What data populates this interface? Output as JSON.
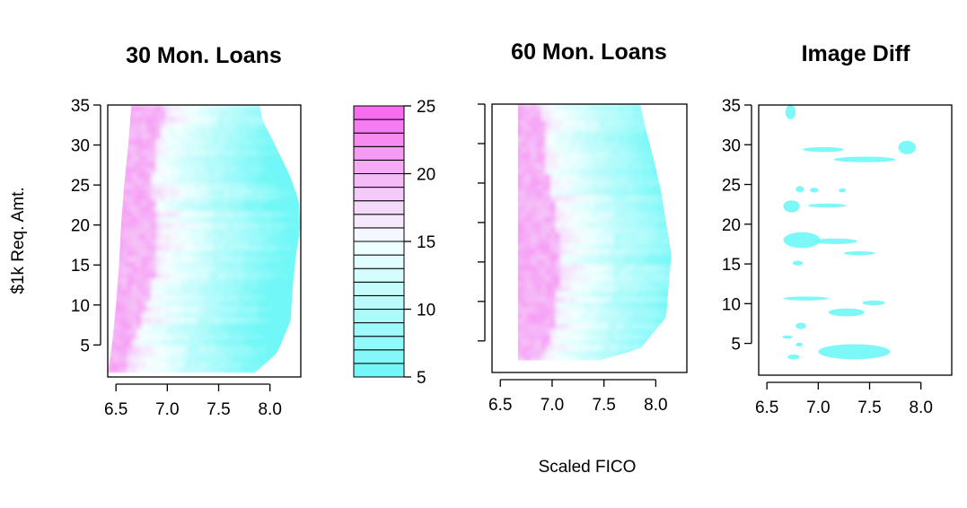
{
  "figure": {
    "shared_xlabel": "Scaled FICO",
    "shared_ylabel": "$1k Req. Amt."
  },
  "colors": {
    "low": "#6ff7f7",
    "mid": "#f5ffff",
    "high": "#f665ee",
    "frame": "#000000"
  },
  "chart_data": [
    {
      "type": "heatmap",
      "title": "30 Mon. Loans",
      "xlim": [
        6.42,
        8.3
      ],
      "ylim": [
        1,
        35
      ],
      "xticks": [
        6.5,
        7.0,
        7.5,
        8.0
      ],
      "xtick_labels": [
        "6.5",
        "7.0",
        "7.5",
        "8.0"
      ],
      "yticks": [
        5,
        10,
        15,
        20,
        25,
        30,
        35
      ],
      "ytick_labels": [
        "5",
        "10",
        "15",
        "20",
        "25",
        "30",
        "35"
      ],
      "value_range": [
        5,
        25
      ],
      "left_edge": [
        [
          1.5,
          6.42
        ],
        [
          4,
          6.45
        ],
        [
          6,
          6.47
        ],
        [
          10,
          6.5
        ],
        [
          15,
          6.53
        ],
        [
          20,
          6.55
        ],
        [
          25,
          6.58
        ],
        [
          30,
          6.62
        ],
        [
          35,
          6.65
        ]
      ],
      "right_edge": [
        [
          1.5,
          7.85
        ],
        [
          4,
          8.07
        ],
        [
          8,
          8.2
        ],
        [
          12,
          8.22
        ],
        [
          16,
          8.25
        ],
        [
          20,
          8.3
        ],
        [
          23,
          8.28
        ],
        [
          26,
          8.2
        ],
        [
          30,
          8.05
        ],
        [
          33,
          7.93
        ],
        [
          35,
          7.9
        ]
      ],
      "boundary_profile": [
        [
          1,
          6.75
        ],
        [
          3,
          6.75
        ],
        [
          5,
          6.8
        ],
        [
          8,
          6.9
        ],
        [
          12,
          7.0
        ],
        [
          16,
          7.05
        ],
        [
          20,
          7.05
        ],
        [
          25,
          7.0
        ],
        [
          30,
          7.05
        ],
        [
          35,
          7.15
        ]
      ]
    },
    {
      "type": "heatmap",
      "title": "60 Mon. Loans",
      "xlim": [
        6.42,
        8.3
      ],
      "ylim": [
        1,
        35
      ],
      "xticks": [
        6.5,
        7.0,
        7.5,
        8.0
      ],
      "xtick_labels": [
        "6.5",
        "7.0",
        "7.5",
        "8.0"
      ],
      "yticks": [
        5,
        10,
        15,
        20,
        25,
        30,
        35
      ],
      "ytick_labels": [],
      "value_range": [
        5,
        25
      ],
      "left_edge": [
        [
          2.5,
          6.67
        ],
        [
          35,
          6.67
        ]
      ],
      "right_edge": [
        [
          2.5,
          7.45
        ],
        [
          4,
          7.85
        ],
        [
          8,
          8.1
        ],
        [
          16,
          8.15
        ],
        [
          20,
          8.1
        ],
        [
          24,
          8.05
        ],
        [
          28,
          7.98
        ],
        [
          32,
          7.9
        ],
        [
          35,
          7.85
        ]
      ],
      "boundary_profile": [
        [
          2.5,
          7.05
        ],
        [
          6,
          7.15
        ],
        [
          10,
          7.2
        ],
        [
          15,
          7.22
        ],
        [
          20,
          7.2
        ],
        [
          25,
          7.12
        ],
        [
          30,
          7.08
        ],
        [
          35,
          7.05
        ]
      ]
    },
    {
      "type": "heatmap",
      "title": "Image Diff",
      "xlim": [
        6.42,
        8.3
      ],
      "ylim": [
        1,
        35
      ],
      "xticks": [
        6.5,
        7.0,
        7.5,
        8.0
      ],
      "xtick_labels": [
        "6.5",
        "7.0",
        "7.5",
        "8.0"
      ],
      "yticks": [
        5,
        10,
        15,
        20,
        25,
        30,
        35
      ],
      "ytick_labels": [
        "5",
        "10",
        "15",
        "20",
        "25",
        "30",
        "35"
      ],
      "blobs": [
        {
          "x": [
            6.68,
            6.78
          ],
          "y": [
            33.2,
            35
          ]
        },
        {
          "x": [
            6.85,
            7.25
          ],
          "y": [
            29.1,
            29.7
          ]
        },
        {
          "x": [
            7.15,
            7.75
          ],
          "y": [
            27.8,
            28.5
          ]
        },
        {
          "x": [
            7.78,
            7.95
          ],
          "y": [
            28.8,
            30.5
          ]
        },
        {
          "x": [
            6.78,
            6.86
          ],
          "y": [
            24.0,
            24.8
          ]
        },
        {
          "x": [
            6.92,
            7.0
          ],
          "y": [
            24.0,
            24.6
          ]
        },
        {
          "x": [
            7.2,
            7.27
          ],
          "y": [
            24.0,
            24.5
          ]
        },
        {
          "x": [
            6.66,
            6.82
          ],
          "y": [
            21.5,
            23.0
          ]
        },
        {
          "x": [
            6.9,
            7.27
          ],
          "y": [
            22.1,
            22.6
          ]
        },
        {
          "x": [
            6.66,
            7.02
          ],
          "y": [
            17.0,
            19.0
          ]
        },
        {
          "x": [
            6.95,
            7.38
          ],
          "y": [
            17.5,
            18.2
          ]
        },
        {
          "x": [
            7.25,
            7.55
          ],
          "y": [
            16.1,
            16.6
          ]
        },
        {
          "x": [
            6.75,
            6.85
          ],
          "y": [
            14.8,
            15.4
          ]
        },
        {
          "x": [
            6.66,
            7.1
          ],
          "y": [
            10.4,
            10.9
          ]
        },
        {
          "x": [
            7.1,
            7.45
          ],
          "y": [
            8.4,
            9.4
          ]
        },
        {
          "x": [
            7.43,
            7.65
          ],
          "y": [
            9.8,
            10.4
          ]
        },
        {
          "x": [
            6.78,
            6.88
          ],
          "y": [
            6.8,
            7.6
          ]
        },
        {
          "x": [
            6.65,
            6.75
          ],
          "y": [
            5.6,
            6.0
          ]
        },
        {
          "x": [
            6.78,
            6.85
          ],
          "y": [
            4.6,
            5.1
          ]
        },
        {
          "x": [
            6.7,
            6.82
          ],
          "y": [
            3.0,
            3.6
          ]
        },
        {
          "x": [
            7.0,
            7.7
          ],
          "y": [
            3.0,
            4.9
          ]
        }
      ]
    },
    {
      "type": "legend_colorbar",
      "ticks": [
        5,
        10,
        15,
        20,
        25
      ],
      "tick_labels": [
        "5",
        "10",
        "15",
        "20",
        "25"
      ],
      "levels": [
        5,
        6,
        7,
        8,
        9,
        10,
        11,
        12,
        13,
        14,
        15,
        16,
        17,
        18,
        19,
        20,
        21,
        22,
        23,
        24,
        25
      ]
    }
  ]
}
